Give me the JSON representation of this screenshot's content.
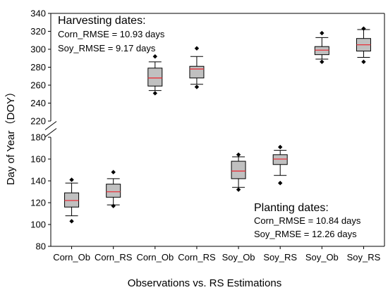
{
  "chart_data": {
    "type": "box",
    "xlabel": "Observations vs. RS Estimations",
    "ylabel": "Day of Year（DOY）",
    "categories": [
      "Corn_Ob",
      "Corn_RS",
      "Corn_Ob",
      "Corn_RS",
      "Soy_Ob",
      "Soy_RS",
      "Soy_Ob",
      "Soy_RS"
    ],
    "axis_segments": [
      {
        "ylim": [
          80,
          180
        ],
        "ticks": [
          80,
          100,
          120,
          140,
          160,
          180
        ]
      },
      {
        "ylim": [
          220,
          340
        ],
        "ticks": [
          220,
          240,
          260,
          280,
          300,
          320,
          340
        ]
      }
    ],
    "axis_break": true,
    "grid": false,
    "boxes": [
      {
        "category": "Corn_Ob",
        "group": "Planting",
        "min": 108,
        "q1": 116,
        "median": 122,
        "q3": 129,
        "max": 138,
        "outliers": [
          103,
          141
        ]
      },
      {
        "category": "Corn_RS",
        "group": "Planting",
        "min": 118,
        "q1": 125,
        "median": 130,
        "q3": 137,
        "max": 142,
        "outliers": [
          117,
          148
        ]
      },
      {
        "category": "Corn_Ob",
        "group": "Harvesting",
        "min": 254,
        "q1": 259,
        "median": 268,
        "q3": 279,
        "max": 286,
        "outliers": [
          251,
          292
        ]
      },
      {
        "category": "Corn_RS",
        "group": "Harvesting",
        "min": 261,
        "q1": 268,
        "median": 278,
        "q3": 281,
        "max": 292,
        "outliers": [
          258,
          301
        ]
      },
      {
        "category": "Soy_Ob",
        "group": "Planting",
        "min": 134,
        "q1": 142,
        "median": 149,
        "q3": 158,
        "max": 162,
        "outliers": [
          132,
          164
        ]
      },
      {
        "category": "Soy_RS",
        "group": "Planting",
        "min": 145,
        "q1": 155,
        "median": 160,
        "q3": 164,
        "max": 168,
        "outliers": [
          138,
          171
        ]
      },
      {
        "category": "Soy_Ob",
        "group": "Harvesting",
        "min": 289,
        "q1": 294,
        "median": 299,
        "q3": 303,
        "max": 313,
        "outliers": [
          286,
          318
        ]
      },
      {
        "category": "Soy_RS",
        "group": "Harvesting",
        "min": 291,
        "q1": 298,
        "median": 305,
        "q3": 312,
        "max": 322,
        "outliers": [
          286,
          323
        ]
      }
    ],
    "annotations": {
      "harvesting": {
        "title": "Harvesting dates:",
        "lines": [
          "Corn_RMSE = 10.93 days",
          "Soy_RMSE = 9.17 days"
        ]
      },
      "planting": {
        "title": "Planting dates:",
        "lines": [
          "Corn_RMSE = 10.84 days",
          "Soy_RMSE = 12.26 days"
        ]
      }
    },
    "colors": {
      "box_fill": "#c0c0c0",
      "box_edge": "#000000",
      "median": "#e8303a",
      "axes": "#000000"
    }
  }
}
